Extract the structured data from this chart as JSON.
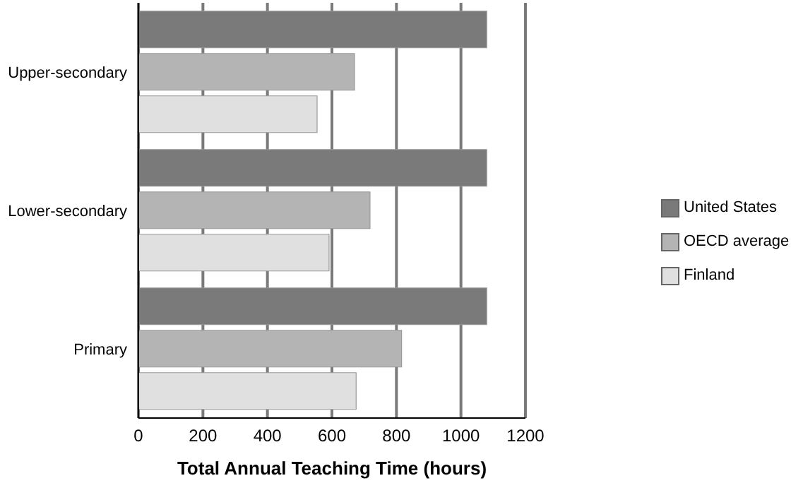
{
  "chart_data": {
    "type": "bar",
    "orientation": "horizontal",
    "xlabel": "Total Annual Teaching Time (hours)",
    "categories": [
      "Upper-secondary",
      "Lower-secondary",
      "Primary"
    ],
    "series": [
      {
        "name": "United States",
        "color": "#7a7a7a",
        "values": [
          1080,
          1080,
          1080
        ]
      },
      {
        "name": "OECD average",
        "color": "#b4b4b4",
        "values": [
          670,
          718,
          816
        ]
      },
      {
        "name": "Finland",
        "color": "#e0e0e0",
        "values": [
          554,
          591,
          675
        ]
      }
    ],
    "xlim": [
      0,
      1200
    ],
    "xticks": [
      0,
      200,
      400,
      600,
      800,
      1000,
      1200
    ],
    "grid": "x",
    "legend": "right"
  }
}
